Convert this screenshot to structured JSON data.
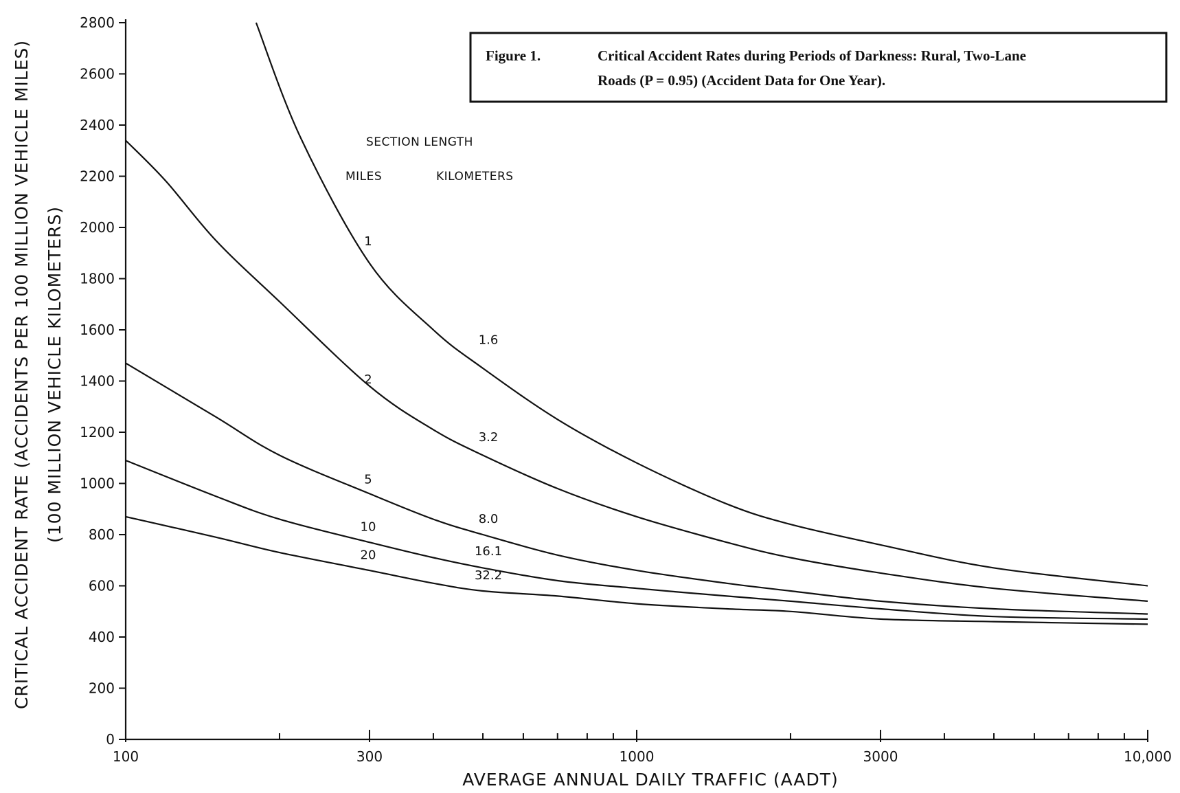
{
  "chart_data": {
    "type": "line",
    "title": {
      "figure_label": "Figure 1.",
      "line1": "Critical Accident Rates during Periods of Darkness: Rural, Two-Lane",
      "line2": "Roads (P = 0.95) (Accident Data for One Year)."
    },
    "xlabel": "AVERAGE ANNUAL DAILY TRAFFIC (AADT)",
    "ylabel": "CRITICAL ACCIDENT RATE (ACCIDENTS PER 100 MILLION VEHICLE MILES)",
    "ylabel2": "(100 MILLION VEHICLE KILOMETERS)",
    "xscale": "log",
    "xlim": [
      100,
      10000
    ],
    "ylim": [
      0,
      2800
    ],
    "xticks": [
      100,
      300,
      1000,
      3000,
      10000
    ],
    "xtick_labels": [
      "100",
      "300",
      "1000",
      "3000",
      "10,000"
    ],
    "yticks": [
      0,
      200,
      400,
      600,
      800,
      1000,
      1200,
      1400,
      1600,
      1800,
      2000,
      2200,
      2400,
      2600,
      2800
    ],
    "ytick_labels": [
      "0",
      "200",
      "400",
      "600",
      "800",
      "1000",
      "1200",
      "1400",
      "1600",
      "1800",
      "2000",
      "2200",
      "2400",
      "2600",
      "2800"
    ],
    "legend": {
      "header": "SECTION LENGTH",
      "col_miles": "MILES",
      "col_km": "KILOMETERS"
    },
    "series": [
      {
        "miles": "1",
        "km": "1.6",
        "x": [
          180,
          220,
          300,
          400,
          500,
          700,
          1000,
          1500,
          2000,
          3000,
          5000,
          10000
        ],
        "y": [
          2800,
          2350,
          1860,
          1600,
          1450,
          1250,
          1080,
          920,
          840,
          760,
          670,
          600
        ],
        "miles_label_at": [
          300,
          1930
        ],
        "km_label_at": [
          500,
          1545
        ]
      },
      {
        "miles": "2",
        "km": "3.2",
        "x": [
          100,
          120,
          150,
          200,
          300,
          400,
          500,
          700,
          1000,
          1500,
          2000,
          3000,
          5000,
          10000
        ],
        "y": [
          2340,
          2180,
          1950,
          1710,
          1380,
          1210,
          1110,
          980,
          870,
          770,
          710,
          650,
          590,
          540
        ],
        "miles_label_at": [
          300,
          1390
        ],
        "km_label_at": [
          500,
          1165
        ]
      },
      {
        "miles": "5",
        "km": "8.0",
        "x": [
          100,
          150,
          200,
          300,
          400,
          500,
          700,
          1000,
          1500,
          2000,
          3000,
          5000,
          10000
        ],
        "y": [
          1470,
          1260,
          1110,
          960,
          860,
          800,
          720,
          660,
          610,
          580,
          540,
          510,
          490
        ],
        "miles_label_at": [
          300,
          1000
        ],
        "km_label_at": [
          500,
          845
        ]
      },
      {
        "miles": "10",
        "km": "16.1",
        "x": [
          100,
          150,
          200,
          300,
          400,
          500,
          700,
          1000,
          1500,
          2000,
          3000,
          5000,
          10000
        ],
        "y": [
          1090,
          950,
          860,
          770,
          710,
          670,
          620,
          590,
          560,
          540,
          510,
          480,
          470
        ],
        "miles_label_at": [
          300,
          815
        ],
        "km_label_at": [
          500,
          720
        ]
      },
      {
        "miles": "20",
        "km": "32.2",
        "x": [
          100,
          150,
          200,
          300,
          400,
          500,
          700,
          1000,
          1500,
          2000,
          3000,
          5000,
          10000
        ],
        "y": [
          870,
          790,
          730,
          660,
          610,
          580,
          560,
          530,
          510,
          500,
          470,
          460,
          450
        ],
        "miles_label_at": [
          300,
          705
        ],
        "km_label_at": [
          500,
          625
        ]
      }
    ]
  }
}
